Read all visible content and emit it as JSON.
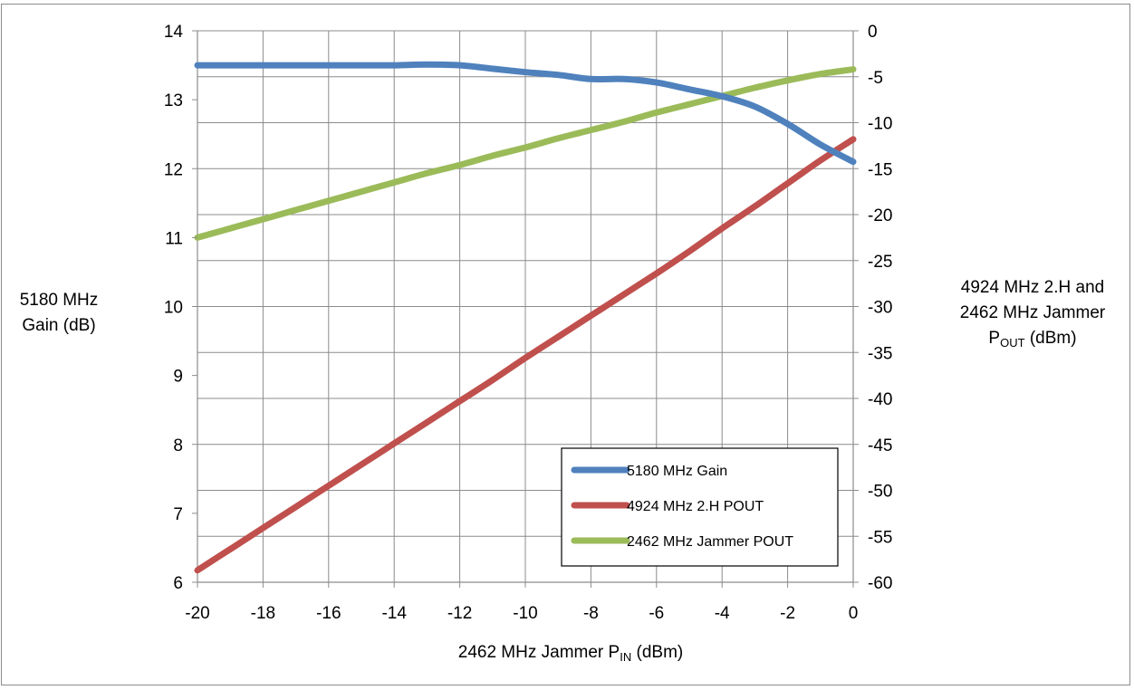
{
  "chart_data": {
    "type": "line",
    "xlabel": {
      "main": "2462 MHz Jammer P",
      "sub": "IN",
      "suffix": " (dBm)"
    },
    "ylabel_left": [
      "5180 MHz",
      "Gain (dB)"
    ],
    "ylabel_right": {
      "line1": "4924 MHz 2.H and",
      "line2": "2462 MHz Jammer",
      "line3_main": "P",
      "line3_sub": "OUT",
      "line3_suffix": " (dBm)"
    },
    "xlim": [
      -20,
      0
    ],
    "xticks": [
      -20,
      -18,
      -16,
      -14,
      -12,
      -10,
      -8,
      -6,
      -4,
      -2,
      0
    ],
    "ylim_left": [
      6,
      14
    ],
    "yticks_left": [
      6,
      7,
      8,
      9,
      10,
      11,
      12,
      13,
      14
    ],
    "ylim_right": [
      -60,
      0
    ],
    "yticks_right": [
      -60,
      -55,
      -50,
      -45,
      -40,
      -35,
      -30,
      -25,
      -20,
      -15,
      -10,
      -5,
      0
    ],
    "grid": true,
    "legend_position": "bottom-right",
    "series": [
      {
        "name": "5180 MHz Gain",
        "axis": "left",
        "color": "#4f81bd",
        "x": [
          -20,
          -19,
          -18,
          -17,
          -16,
          -15,
          -14,
          -13,
          -12,
          -11,
          -10,
          -9,
          -8,
          -7,
          -6,
          -5,
          -4,
          -3,
          -2,
          -1,
          0
        ],
        "y": [
          13.5,
          13.5,
          13.5,
          13.5,
          13.5,
          13.5,
          13.5,
          13.51,
          13.5,
          13.45,
          13.4,
          13.36,
          13.3,
          13.3,
          13.25,
          13.15,
          13.05,
          12.9,
          12.65,
          12.35,
          12.1
        ]
      },
      {
        "name": "4924 MHz 2.H POUT",
        "axis": "right",
        "color": "#c0504d",
        "x": [
          -20,
          -19,
          -18,
          -17,
          -16,
          -15,
          -14,
          -13,
          -12,
          -11,
          -10,
          -9,
          -8,
          -7,
          -6,
          -5,
          -4,
          -3,
          -2,
          -1,
          0
        ],
        "y": [
          -58.7,
          -56.4,
          -54.1,
          -51.8,
          -49.5,
          -47.2,
          -44.9,
          -42.6,
          -40.3,
          -38,
          -35.6,
          -33.3,
          -31,
          -28.7,
          -26.4,
          -24,
          -21.5,
          -19.1,
          -16.6,
          -14.1,
          -11.8
        ]
      },
      {
        "name": "2462 MHz Jammer POUT",
        "axis": "right",
        "color": "#9bbb59",
        "x": [
          -20,
          -19,
          -18,
          -17,
          -16,
          -15,
          -14,
          -13,
          -12,
          -11,
          -10,
          -9,
          -8,
          -7,
          -6,
          -5,
          -4,
          -3,
          -2,
          -1,
          0
        ],
        "y": [
          -22.5,
          -21.5,
          -20.5,
          -19.5,
          -18.5,
          -17.5,
          -16.5,
          -15.5,
          -14.6,
          -13.6,
          -12.7,
          -11.7,
          -10.8,
          -9.9,
          -8.9,
          -8,
          -7.1,
          -6.2,
          -5.4,
          -4.7,
          -4.2
        ]
      }
    ]
  }
}
